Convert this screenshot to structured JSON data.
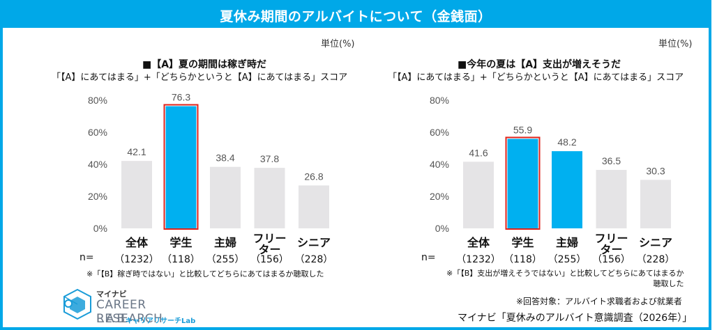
{
  "header": {
    "title": "夏休み期間のアルバイトについて（金銭面）"
  },
  "unit_label": "単位(%)",
  "chart_data": [
    {
      "type": "bar",
      "title": "■【A】夏の期間は稼ぎ時だ",
      "subtitle": "「【A】にあてはまる」+「どちらかというと【A】にあてはまる」スコア",
      "categories": [
        "全体",
        "学生",
        "主婦",
        "フリー\nター",
        "シニア"
      ],
      "values": [
        42.1,
        76.3,
        38.4,
        37.8,
        26.8
      ],
      "n_label": "n=",
      "n_values": [
        "（1232）",
        "（118）",
        "（255）",
        "（156）",
        "（228）"
      ],
      "ylim": [
        0,
        80
      ],
      "yticks": [
        0,
        20,
        40,
        60,
        80
      ],
      "ytick_labels": [
        "0%",
        "20%",
        "40%",
        "60%",
        "80%"
      ],
      "highlighted": [
        1
      ],
      "emphasized": [
        1
      ],
      "note": "※「【B】稼ぎ時ではない」と比較してどちらにあてはまるか聴取した"
    },
    {
      "type": "bar",
      "title": "■今年の夏は【A】支出が増えそうだ",
      "subtitle": "「【A】にあてはまる」+「どちらかというと【A】にあてはまる」スコア",
      "categories": [
        "全体",
        "学生",
        "主婦",
        "フリー\nター",
        "シニア"
      ],
      "values": [
        41.6,
        55.9,
        48.2,
        36.5,
        30.3
      ],
      "n_label": "n=",
      "n_values": [
        "（1232）",
        "（118）",
        "（255）",
        "（156）",
        "（228）"
      ],
      "ylim": [
        0,
        80
      ],
      "yticks": [
        0,
        20,
        40,
        60,
        80
      ],
      "ytick_labels": [
        "0%",
        "20%",
        "40%",
        "60%",
        "80%"
      ],
      "highlighted": [
        1
      ],
      "emphasized": [
        1,
        2
      ],
      "note": "※「【B】支出が増えそうではない」と比較してどちらにあてはまるか\n聴取した"
    }
  ],
  "colors": {
    "accent": "#00A8E8",
    "bar_default": "#E5E4E6",
    "bar_emphasis": "#00B0F0",
    "highlight_border": "#E0231B"
  },
  "logo": {
    "small": "マイナビ",
    "main": "CAREER RESEARCH",
    "lab": "LAB",
    "kana": "キャリアリサーチLab",
    "icon": "career-research-lab-logo-icon"
  },
  "footer": {
    "respondents": "※回答対象：アルバイト求職者および就業者",
    "source": "マイナビ「夏休みのアルバイト意識調査（2026年）」"
  }
}
